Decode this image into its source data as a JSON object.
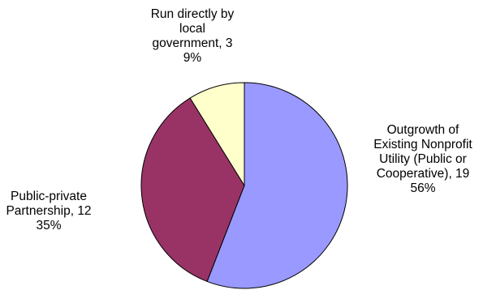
{
  "chart_data": {
    "type": "pie",
    "slices": [
      {
        "category": "Outgrowth of Existing Nonprofit Utility (Public or Cooperative)",
        "value": 19,
        "percent": "56%",
        "color": "#9999ff",
        "label_lines": [
          "Outgrowth of",
          "Existing Nonprofit",
          "Utility (Public or",
          "Cooperative), 19",
          "56%"
        ]
      },
      {
        "category": "Public-private Partnership",
        "value": 12,
        "percent": "35%",
        "color": "#993366",
        "label_lines": [
          "Public-private",
          "Partnership, 12",
          "35%"
        ]
      },
      {
        "category": "Run directly by local government",
        "value": 3,
        "percent": "9%",
        "color": "#ffffcc",
        "label_lines": [
          "Run directly by",
          "local",
          "government, 3",
          "9%"
        ]
      }
    ],
    "start_angle": "12 o'clock",
    "direction": "clockwise",
    "legend": "none"
  }
}
